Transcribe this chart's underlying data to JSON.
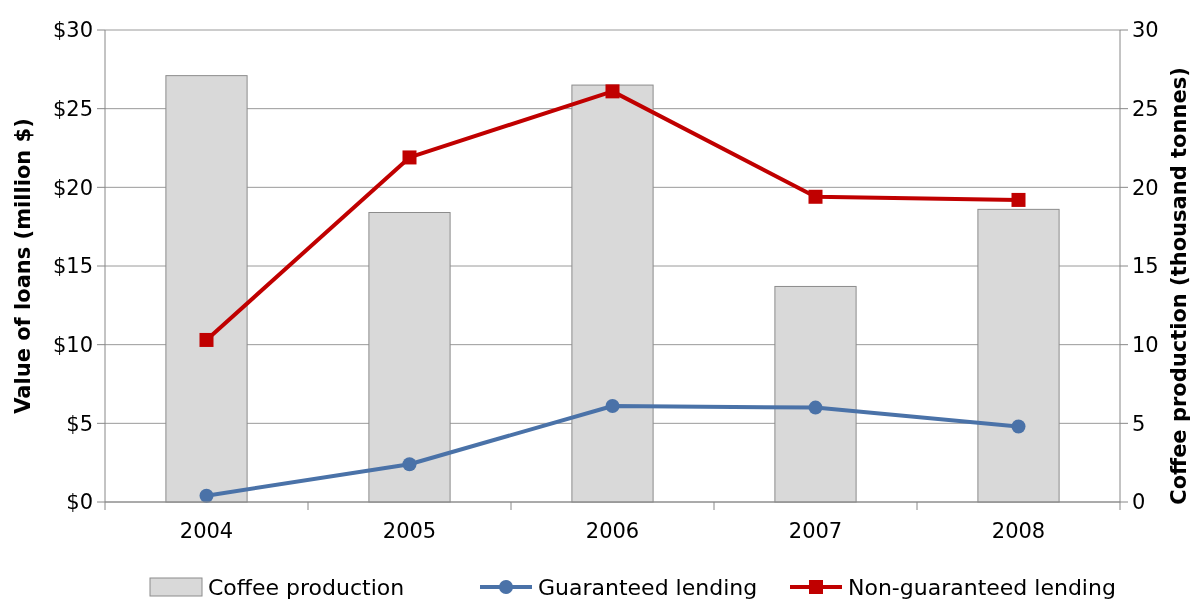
{
  "chart_data": {
    "type": "bar",
    "ylabel": "Value of loans (million $)",
    "y2label": "Coffee production (thousand tonnes)",
    "categories": [
      "2004",
      "2005",
      "2006",
      "2007",
      "2008"
    ],
    "series": [
      {
        "name": "Coffee production",
        "color": "#d9d9d9",
        "values": [
          27.1,
          18.4,
          26.5,
          13.7,
          18.6
        ]
      },
      {
        "name": "Guaranteed lending",
        "type": "line",
        "marker": "circle",
        "color": "#4a72a8",
        "values": [
          0.4,
          2.4,
          6.1,
          6.0,
          4.8
        ]
      },
      {
        "name": "Non-guaranteed lending",
        "type": "line",
        "marker": "square",
        "color": "#c00000",
        "values": [
          10.3,
          21.9,
          26.1,
          19.4,
          19.2
        ]
      }
    ],
    "ylim": [
      0,
      30
    ],
    "yticks": [
      {
        "value": 0,
        "label": "$0"
      },
      {
        "value": 5,
        "label": "$5"
      },
      {
        "value": 10,
        "label": "$10"
      },
      {
        "value": 15,
        "label": "$15"
      },
      {
        "value": 20,
        "label": "$20"
      },
      {
        "value": 25,
        "label": "$25"
      },
      {
        "value": 30,
        "label": "$30"
      }
    ],
    "y2lim": [
      0,
      30
    ],
    "y2ticks": [
      0,
      5,
      10,
      15,
      20,
      25,
      30
    ],
    "grid": "y",
    "legend": "bottom"
  }
}
